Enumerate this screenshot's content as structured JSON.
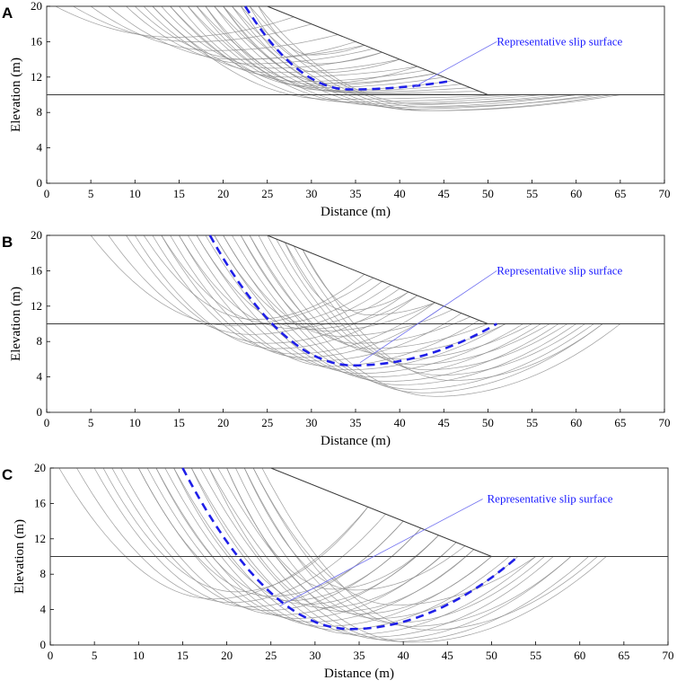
{
  "figure": {
    "colors": {
      "representative": "#1f1fe8",
      "trial": "#8c8c8c",
      "boundary": "#3a3a3a",
      "leader": "#6f6ff0"
    }
  },
  "chart_data": [
    {
      "type": "line",
      "panel": "A",
      "title": "",
      "xlabel": "Distance (m)",
      "ylabel": "Elevation (m)",
      "xlim": [
        0,
        70
      ],
      "ylim": [
        0,
        20
      ],
      "xticks": [
        "0",
        "5",
        "10",
        "15",
        "20",
        "25",
        "30",
        "35",
        "40",
        "45",
        "50",
        "55",
        "60",
        "65",
        "70"
      ],
      "yticks": [
        "0",
        "4",
        "8",
        "12",
        "16",
        "20"
      ],
      "grid": false,
      "slope_profile": [
        [
          0,
          20
        ],
        [
          25,
          20
        ],
        [
          50,
          10
        ],
        [
          70,
          10
        ]
      ],
      "ground_line": [
        [
          0,
          10
        ],
        [
          70,
          10
        ]
      ],
      "annotation": {
        "text": "Representative slip surface",
        "from": [
          41.5,
          10.8
        ],
        "to": [
          51,
          16
        ],
        "text_at": [
          51,
          16
        ]
      },
      "representative_slip": {
        "x_entry": 22.5,
        "x_exit": 46,
        "y_min": 10.6
      },
      "trial_slips": [
        {
          "x_entry": 1,
          "x_exit": 28,
          "y_min": 16.5
        },
        {
          "x_entry": 3,
          "x_exit": 30,
          "y_min": 16
        },
        {
          "x_entry": 5,
          "x_exit": 33,
          "y_min": 15
        },
        {
          "x_entry": 7,
          "x_exit": 36,
          "y_min": 14
        },
        {
          "x_entry": 9,
          "x_exit": 37,
          "y_min": 13.5
        },
        {
          "x_entry": 11,
          "x_exit": 40,
          "y_min": 12.5
        },
        {
          "x_entry": 12,
          "x_exit": 42,
          "y_min": 12
        },
        {
          "x_entry": 14,
          "x_exit": 43,
          "y_min": 11.5
        },
        {
          "x_entry": 15,
          "x_exit": 44,
          "y_min": 11
        },
        {
          "x_entry": 16,
          "x_exit": 45,
          "y_min": 10.8
        },
        {
          "x_entry": 17,
          "x_exit": 46,
          "y_min": 10.5
        },
        {
          "x_entry": 18,
          "x_exit": 47,
          "y_min": 10.4
        },
        {
          "x_entry": 19,
          "x_exit": 48,
          "y_min": 10.3
        },
        {
          "x_entry": 20,
          "x_exit": 49,
          "y_min": 10.2
        },
        {
          "x_entry": 21,
          "x_exit": 50,
          "y_min": 10.1
        },
        {
          "x_entry": 12,
          "x_exit": 52,
          "y_min": 9.5
        },
        {
          "x_entry": 14,
          "x_exit": 54,
          "y_min": 9.2
        },
        {
          "x_entry": 16,
          "x_exit": 56,
          "y_min": 9
        },
        {
          "x_entry": 17,
          "x_exit": 58,
          "y_min": 8.8
        },
        {
          "x_entry": 19,
          "x_exit": 60,
          "y_min": 8.6
        },
        {
          "x_entry": 20,
          "x_exit": 62,
          "y_min": 8.4
        },
        {
          "x_entry": 21,
          "x_exit": 64,
          "y_min": 8.2
        },
        {
          "x_entry": 22,
          "x_exit": 65,
          "y_min": 8.2
        },
        {
          "x_entry": 23,
          "x_exit": 63,
          "y_min": 8.6
        },
        {
          "x_entry": 24,
          "x_exit": 60,
          "y_min": 9
        },
        {
          "x_entry": 18,
          "x_exit": 42,
          "y_min": 11.2
        },
        {
          "x_entry": 20,
          "x_exit": 44,
          "y_min": 11.3
        },
        {
          "x_entry": 22,
          "x_exit": 40,
          "y_min": 12.5
        },
        {
          "x_entry": 23,
          "x_exit": 38,
          "y_min": 13.5
        },
        {
          "x_entry": 24,
          "x_exit": 36,
          "y_min": 14.5
        },
        {
          "x_entry": 10,
          "x_exit": 35,
          "y_min": 14
        },
        {
          "x_entry": 13,
          "x_exit": 38,
          "y_min": 13
        }
      ]
    },
    {
      "type": "line",
      "panel": "B",
      "title": "",
      "xlabel": "Distance (m)",
      "ylabel": "Elevation (m)",
      "xlim": [
        0,
        70
      ],
      "ylim": [
        0,
        20
      ],
      "xticks": [
        "0",
        "5",
        "10",
        "15",
        "20",
        "25",
        "30",
        "35",
        "40",
        "45",
        "50",
        "55",
        "60",
        "65",
        "70"
      ],
      "yticks": [
        "0",
        "4",
        "8",
        "12",
        "16",
        "20"
      ],
      "grid": false,
      "slope_profile": [
        [
          0,
          20
        ],
        [
          25,
          20
        ],
        [
          50,
          10
        ],
        [
          70,
          10
        ]
      ],
      "ground_line": [
        [
          0,
          10
        ],
        [
          70,
          10
        ]
      ],
      "annotation": {
        "text": "Representative slip surface",
        "from": [
          35.5,
          5.6
        ],
        "to": [
          51,
          16
        ],
        "text_at": [
          51,
          16
        ]
      },
      "representative_slip": {
        "x_entry": 18.5,
        "x_exit": 51,
        "y_min": 5.3
      },
      "trial_slips": [
        {
          "x_entry": 5,
          "x_exit": 37,
          "y_min": 9.8
        },
        {
          "x_entry": 7,
          "x_exit": 39,
          "y_min": 8.8
        },
        {
          "x_entry": 9,
          "x_exit": 41,
          "y_min": 7.8
        },
        {
          "x_entry": 10,
          "x_exit": 42,
          "y_min": 7.2
        },
        {
          "x_entry": 12,
          "x_exit": 44,
          "y_min": 6.6
        },
        {
          "x_entry": 13,
          "x_exit": 45,
          "y_min": 6.2
        },
        {
          "x_entry": 14,
          "x_exit": 47,
          "y_min": 5.8
        },
        {
          "x_entry": 15,
          "x_exit": 49,
          "y_min": 5.2
        },
        {
          "x_entry": 16,
          "x_exit": 52,
          "y_min": 4.8
        },
        {
          "x_entry": 17,
          "x_exit": 54,
          "y_min": 4.4
        },
        {
          "x_entry": 18,
          "x_exit": 56,
          "y_min": 4
        },
        {
          "x_entry": 19,
          "x_exit": 58,
          "y_min": 3.5
        },
        {
          "x_entry": 20,
          "x_exit": 60,
          "y_min": 3.1
        },
        {
          "x_entry": 21,
          "x_exit": 62,
          "y_min": 2.6
        },
        {
          "x_entry": 22,
          "x_exit": 63,
          "y_min": 2.2
        },
        {
          "x_entry": 23,
          "x_exit": 65,
          "y_min": 1.8
        },
        {
          "x_entry": 11,
          "x_exit": 36,
          "y_min": 10.5
        },
        {
          "x_entry": 13,
          "x_exit": 38,
          "y_min": 10
        },
        {
          "x_entry": 15,
          "x_exit": 40,
          "y_min": 9.5
        },
        {
          "x_entry": 17,
          "x_exit": 42,
          "y_min": 9.4
        },
        {
          "x_entry": 19,
          "x_exit": 44,
          "y_min": 9.2
        },
        {
          "x_entry": 20,
          "x_exit": 46,
          "y_min": 8.6
        },
        {
          "x_entry": 22,
          "x_exit": 48,
          "y_min": 7.8
        },
        {
          "x_entry": 23,
          "x_exit": 50,
          "y_min": 7.2
        },
        {
          "x_entry": 24,
          "x_exit": 52,
          "y_min": 6.6
        },
        {
          "x_entry": 25,
          "x_exit": 55,
          "y_min": 6
        },
        {
          "x_entry": 26,
          "x_exit": 57,
          "y_min": 5.4
        },
        {
          "x_entry": 27,
          "x_exit": 59,
          "y_min": 4.8
        },
        {
          "x_entry": 28,
          "x_exit": 61,
          "y_min": 4.2
        },
        {
          "x_entry": 29,
          "x_exit": 63,
          "y_min": 3.6
        },
        {
          "x_entry": 27,
          "x_exit": 41,
          "y_min": 11.5
        },
        {
          "x_entry": 29,
          "x_exit": 44,
          "y_min": 11
        }
      ]
    },
    {
      "type": "line",
      "panel": "C",
      "title": "",
      "xlabel": "Distance (m)",
      "ylabel": "Elevation (m)",
      "xlim": [
        0,
        70
      ],
      "ylim": [
        0,
        20
      ],
      "xticks": [
        "0",
        "5",
        "10",
        "15",
        "20",
        "25",
        "30",
        "35",
        "40",
        "45",
        "50",
        "55",
        "60",
        "65",
        "70"
      ],
      "yticks": [
        "0",
        "4",
        "8",
        "12",
        "16",
        "20"
      ],
      "grid": false,
      "slope_profile": [
        [
          0,
          20
        ],
        [
          25,
          20
        ],
        [
          50,
          10
        ],
        [
          70,
          10
        ]
      ],
      "ground_line": [
        [
          0,
          10
        ],
        [
          70,
          10
        ]
      ],
      "annotation": {
        "text": "Representative slip surface",
        "from": [
          26,
          4.4
        ],
        "to": [
          49,
          16.5
        ],
        "text_at": [
          49.5,
          16.5
        ]
      },
      "representative_slip": {
        "x_entry": 15,
        "x_exit": 53,
        "y_min": 1.8
      },
      "trial_slips": [
        {
          "x_entry": 1,
          "x_exit": 36,
          "y_min": 5.2
        },
        {
          "x_entry": 3,
          "x_exit": 38,
          "y_min": 4.8
        },
        {
          "x_entry": 5,
          "x_exit": 40,
          "y_min": 4.3
        },
        {
          "x_entry": 7,
          "x_exit": 42,
          "y_min": 3.9
        },
        {
          "x_entry": 8,
          "x_exit": 44,
          "y_min": 3.4
        },
        {
          "x_entry": 10,
          "x_exit": 46,
          "y_min": 3
        },
        {
          "x_entry": 11,
          "x_exit": 48,
          "y_min": 2.6
        },
        {
          "x_entry": 12,
          "x_exit": 50,
          "y_min": 2.1
        },
        {
          "x_entry": 13,
          "x_exit": 52,
          "y_min": 1.7
        },
        {
          "x_entry": 14,
          "x_exit": 55,
          "y_min": 1.2
        },
        {
          "x_entry": 16,
          "x_exit": 57,
          "y_min": 0.9
        },
        {
          "x_entry": 17,
          "x_exit": 59,
          "y_min": 0.6
        },
        {
          "x_entry": 18,
          "x_exit": 61,
          "y_min": 0.4
        },
        {
          "x_entry": 19,
          "x_exit": 63,
          "y_min": 0.3
        },
        {
          "x_entry": 10,
          "x_exit": 40,
          "y_min": 5.5
        },
        {
          "x_entry": 12,
          "x_exit": 42,
          "y_min": 5
        },
        {
          "x_entry": 14,
          "x_exit": 44,
          "y_min": 4.6
        },
        {
          "x_entry": 16,
          "x_exit": 46,
          "y_min": 4.2
        },
        {
          "x_entry": 18,
          "x_exit": 48,
          "y_min": 3.8
        },
        {
          "x_entry": 20,
          "x_exit": 50,
          "y_min": 3.5
        },
        {
          "x_entry": 21,
          "x_exit": 53,
          "y_min": 3
        },
        {
          "x_entry": 22,
          "x_exit": 56,
          "y_min": 2.5
        },
        {
          "x_entry": 23,
          "x_exit": 59,
          "y_min": 2.1
        },
        {
          "x_entry": 24,
          "x_exit": 62,
          "y_min": 1.7
        },
        {
          "x_entry": 6,
          "x_exit": 36,
          "y_min": 6
        },
        {
          "x_entry": 20,
          "x_exit": 44,
          "y_min": 6.3
        },
        {
          "x_entry": 22,
          "x_exit": 47,
          "y_min": 6.2
        },
        {
          "x_entry": 23,
          "x_exit": 55,
          "y_min": 4.5
        }
      ]
    }
  ]
}
